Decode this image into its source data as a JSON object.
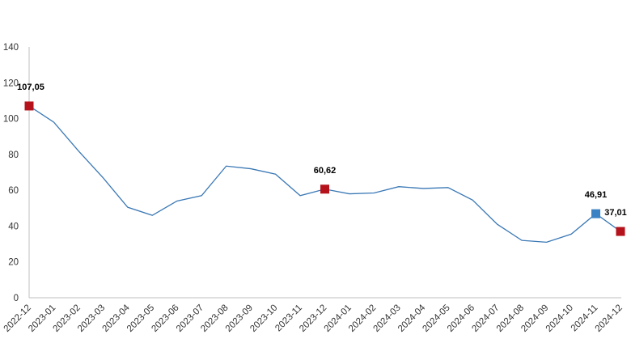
{
  "chart_data": {
    "type": "line",
    "categories": [
      "2022-12",
      "2023-01",
      "2023-02",
      "2023-03",
      "2023-04",
      "2023-05",
      "2023-06",
      "2023-07",
      "2023-08",
      "2023-09",
      "2023-10",
      "2023-11",
      "2023-12",
      "2024-01",
      "2024-02",
      "2024-03",
      "2024-04",
      "2024-05",
      "2024-06",
      "2024-07",
      "2024-08",
      "2024-09",
      "2024-10",
      "2024-11",
      "2024-12"
    ],
    "series": [
      {
        "values": [
          107.05,
          98,
          82,
          67,
          50.5,
          46,
          54,
          57,
          73.5,
          72,
          69,
          57,
          60.62,
          58,
          58.5,
          62,
          61,
          61.5,
          54.5,
          41,
          32,
          31,
          35.5,
          46.91,
          37.01
        ]
      }
    ],
    "ylim": [
      0,
      140
    ],
    "yticks": [
      0,
      20,
      40,
      60,
      80,
      100,
      120,
      140
    ],
    "grid": false,
    "highlights": [
      {
        "index": 0,
        "label": "107,05",
        "color": "#b5121b"
      },
      {
        "index": 12,
        "label": "60,62",
        "color": "#b5121b"
      },
      {
        "index": 23,
        "label": "46,91",
        "color": "#3b82c4"
      },
      {
        "index": 24,
        "label": "37,01",
        "color": "#b5121b"
      }
    ],
    "colors": {
      "line": "#3a78b5",
      "axis": "#bfbfbf"
    }
  }
}
